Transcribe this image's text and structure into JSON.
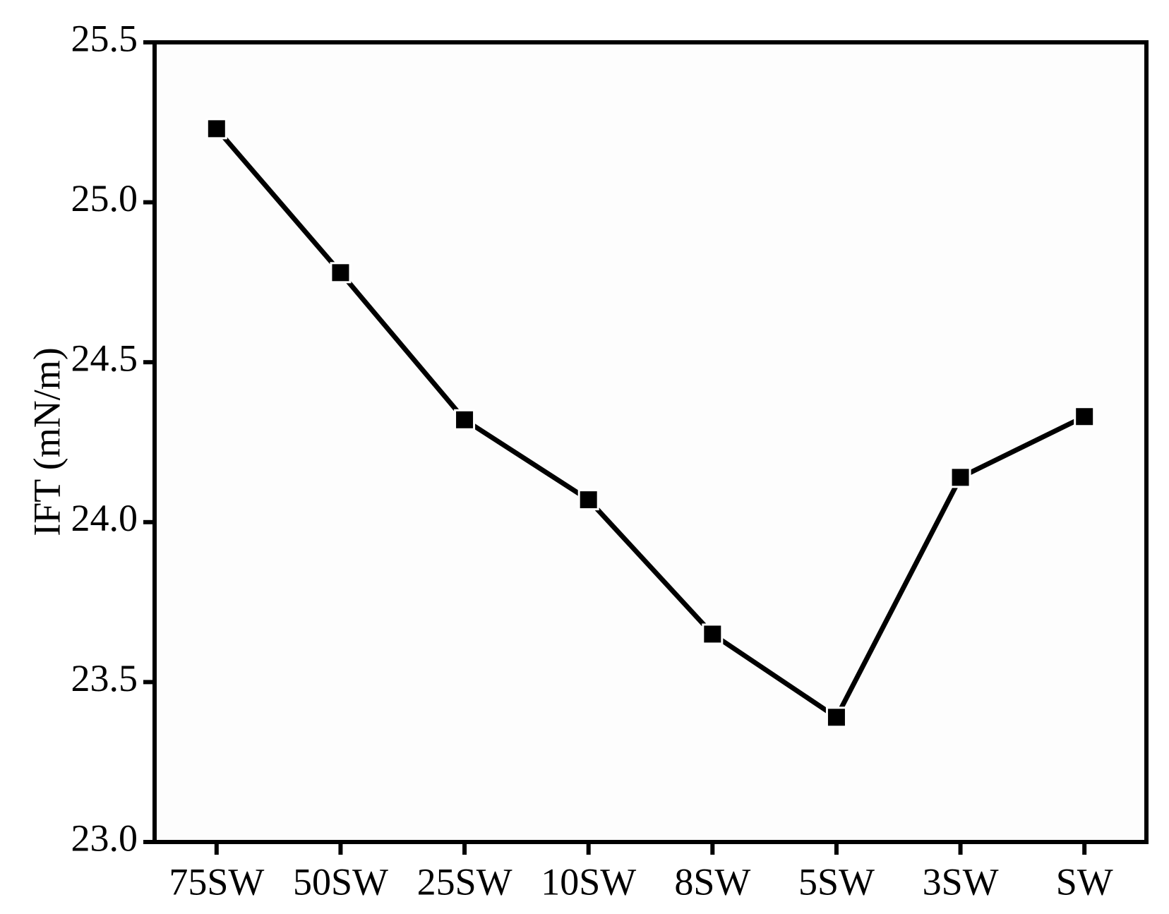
{
  "chart_data": {
    "type": "line",
    "y_label": "IFT (mN/m)",
    "categories": [
      "75SW",
      "50SW",
      "25SW",
      "10SW",
      "8SW",
      "5SW",
      "3SW",
      "SW"
    ],
    "series": [
      {
        "name": "IFT",
        "color": "#000000",
        "values": [
          25.23,
          24.78,
          24.32,
          24.07,
          23.65,
          23.39,
          24.14,
          24.33
        ]
      }
    ],
    "ylim": [
      23.0,
      25.5
    ],
    "yticks": [
      {
        "value": 23.0,
        "label": "23.0"
      },
      23.5,
      {
        "value": 24.0,
        "label": "24.0"
      },
      24.5,
      {
        "value": 25.0,
        "label": "25.0"
      },
      25.5
    ],
    "grid": false
  }
}
